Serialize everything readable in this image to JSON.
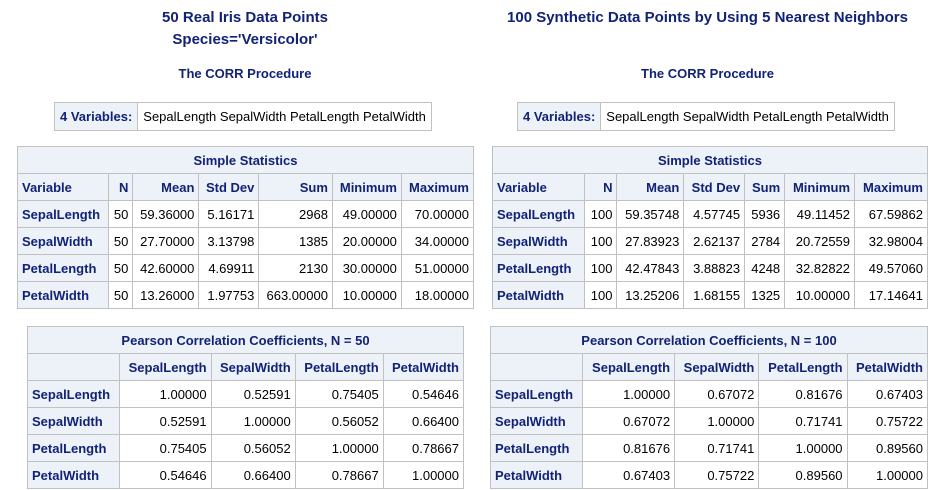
{
  "panels": [
    {
      "title": [
        "50 Real Iris Data Points",
        "Species='Versicolor'"
      ],
      "procedure": "The CORR Procedure",
      "variables_label": "4 Variables:",
      "variables": "SepalLength SepalWidth PetalLength PetalWidth",
      "simple_stats": {
        "title": "Simple Statistics",
        "columns": [
          "Variable",
          "N",
          "Mean",
          "Std Dev",
          "Sum",
          "Minimum",
          "Maximum"
        ],
        "rows": [
          [
            "SepalLength",
            "50",
            "59.36000",
            "5.16171",
            "2968",
            "49.00000",
            "70.00000"
          ],
          [
            "SepalWidth",
            "50",
            "27.70000",
            "3.13798",
            "1385",
            "20.00000",
            "34.00000"
          ],
          [
            "PetalLength",
            "50",
            "42.60000",
            "4.69911",
            "2130",
            "30.00000",
            "51.00000"
          ],
          [
            "PetalWidth",
            "50",
            "13.26000",
            "1.97753",
            "663.00000",
            "10.00000",
            "18.00000"
          ]
        ]
      },
      "correlation": {
        "title": "Pearson Correlation Coefficients, N = 50",
        "columns": [
          "SepalLength",
          "SepalWidth",
          "PetalLength",
          "PetalWidth"
        ],
        "rows": [
          [
            "SepalLength",
            "1.00000",
            "0.52591",
            "0.75405",
            "0.54646"
          ],
          [
            "SepalWidth",
            "0.52591",
            "1.00000",
            "0.56052",
            "0.66400"
          ],
          [
            "PetalLength",
            "0.75405",
            "0.56052",
            "1.00000",
            "0.78667"
          ],
          [
            "PetalWidth",
            "0.54646",
            "0.66400",
            "0.78667",
            "1.00000"
          ]
        ]
      }
    },
    {
      "title": [
        "100 Synthetic Data Points by Using 5 Nearest Neighbors"
      ],
      "procedure": "The CORR Procedure",
      "variables_label": "4 Variables:",
      "variables": "SepalLength SepalWidth PetalLength PetalWidth",
      "simple_stats": {
        "title": "Simple Statistics",
        "columns": [
          "Variable",
          "N",
          "Mean",
          "Std Dev",
          "Sum",
          "Minimum",
          "Maximum"
        ],
        "rows": [
          [
            "SepalLength",
            "100",
            "59.35748",
            "4.57745",
            "5936",
            "49.11452",
            "67.59862"
          ],
          [
            "SepalWidth",
            "100",
            "27.83923",
            "2.62137",
            "2784",
            "20.72559",
            "32.98004"
          ],
          [
            "PetalLength",
            "100",
            "42.47843",
            "3.88823",
            "4248",
            "32.82822",
            "49.57060"
          ],
          [
            "PetalWidth",
            "100",
            "13.25206",
            "1.68155",
            "1325",
            "10.00000",
            "17.14641"
          ]
        ]
      },
      "correlation": {
        "title": "Pearson Correlation Coefficients, N = 100",
        "columns": [
          "SepalLength",
          "SepalWidth",
          "PetalLength",
          "PetalWidth"
        ],
        "rows": [
          [
            "SepalLength",
            "1.00000",
            "0.67072",
            "0.81676",
            "0.67403"
          ],
          [
            "SepalWidth",
            "0.67072",
            "1.00000",
            "0.71741",
            "0.75722"
          ],
          [
            "PetalLength",
            "0.81676",
            "0.71741",
            "1.00000",
            "0.89560"
          ],
          [
            "PetalWidth",
            "0.67403",
            "0.75722",
            "0.89560",
            "1.00000"
          ]
        ]
      }
    }
  ]
}
